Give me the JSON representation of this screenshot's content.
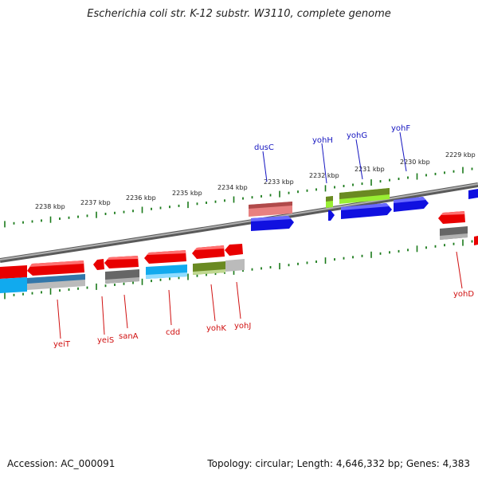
{
  "title": "Escherichia coli str. K-12 substr. W3110, complete genome",
  "accession": "Accession: AC_000091",
  "summary": "Topology: circular; Length: 4,646,332 bp; Genes: 4,383",
  "colors": {
    "forward_gene": "#1010e0",
    "reverse_gene": "#e80000",
    "forward_label": "#1515c0",
    "reverse_label": "#d01010",
    "tick": "#1a7a1a",
    "backbone": "#808080",
    "cog_cyan": "#11aaee",
    "cog_gray": "#666666",
    "cog_olive": "#6a8a22",
    "cog_pink": "#e88080",
    "cog_lime": "#99ee33",
    "cog_lightgray": "#bbbbbb",
    "cog_steelblue": "#3377aa"
  },
  "outer_scale": [
    "2238 kbp",
    "2237 kbp",
    "2236 kbp",
    "2235 kbp",
    "2234 kbp",
    "2233 kbp",
    "2232 kbp",
    "2231 kbp",
    "2230 kbp",
    "2229 kbp"
  ],
  "forward_genes": [
    "dusC",
    "yohH",
    "yohG",
    "yohF"
  ],
  "reverse_genes": [
    "yeiT",
    "yeiS",
    "sanA",
    "cdd",
    "yohK",
    "yohJ",
    "yohD"
  ]
}
